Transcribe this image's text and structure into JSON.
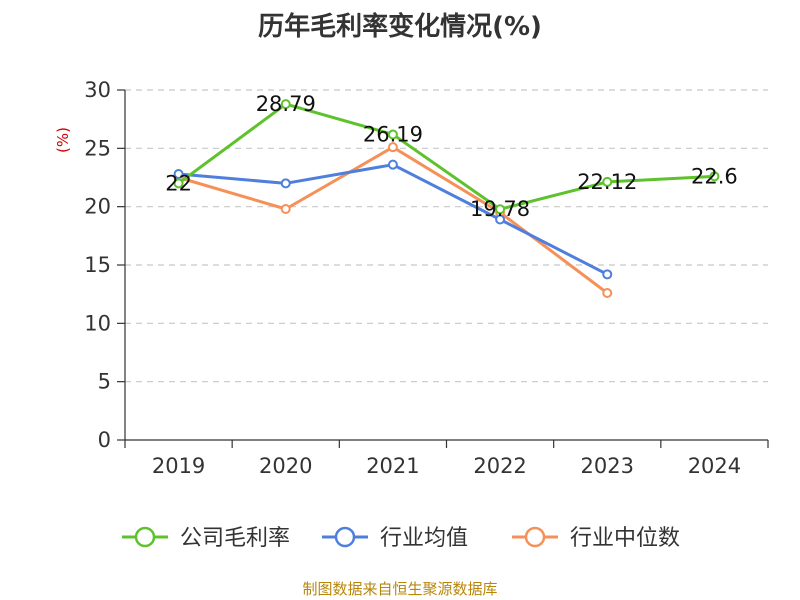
{
  "title": "历年毛利率变化情况(%)",
  "footer": "制图数据来自恒生聚源数据库",
  "chart_data": {
    "type": "line",
    "title": "历年毛利率变化情况(%)",
    "ylabel": "(%)",
    "ylim": [
      0,
      30
    ],
    "yticks": [
      0,
      5,
      10,
      15,
      20,
      25,
      30
    ],
    "grid": true,
    "legend_position": "bottom",
    "categories": [
      "2019",
      "2020",
      "2021",
      "2022",
      "2023",
      "2024"
    ],
    "series": [
      {
        "name": "公司毛利率",
        "color": "#5ec22c",
        "values": [
          22,
          28.79,
          26.19,
          19.78,
          22.12,
          22.6
        ],
        "labels": [
          "22",
          "28.79",
          "26.19",
          "19.78",
          "22.12",
          "22.6"
        ]
      },
      {
        "name": "行业均值",
        "color": "#4f7fdc",
        "values": [
          22.8,
          22.0,
          23.6,
          18.9,
          14.2,
          null
        ]
      },
      {
        "name": "行业中位数",
        "color": "#f59158",
        "values": [
          22.5,
          19.8,
          25.1,
          19.5,
          12.6,
          null
        ]
      }
    ]
  }
}
